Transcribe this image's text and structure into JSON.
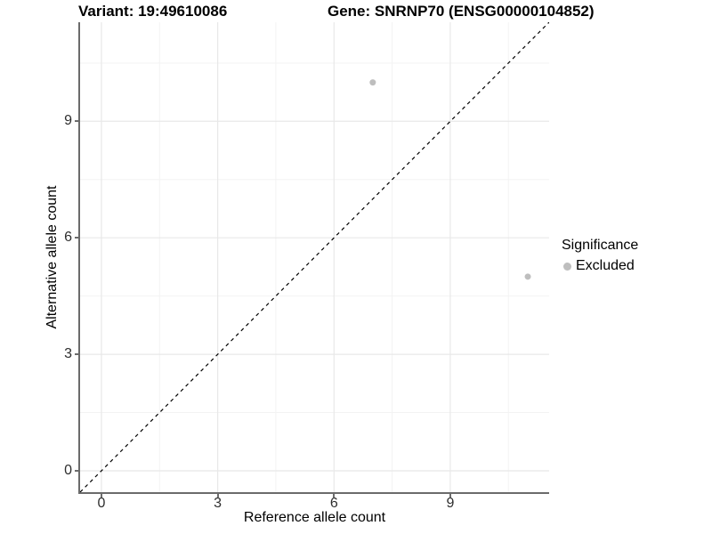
{
  "header": {
    "variant_title": "Variant: 19:49610086",
    "gene_title": "Gene: SNRNP70 (ENSG00000104852)"
  },
  "legend": {
    "title": "Significance",
    "items": [
      {
        "label": "Excluded",
        "color": "#bebebe"
      }
    ]
  },
  "colors": {
    "background": "#ffffff",
    "axis_line": "#6b6b6b",
    "tick_label": "#2e2e2e",
    "grid_major": "#e8e8e8",
    "grid_minor": "#f3f3f3",
    "point": "#bebebe",
    "reference_line": "#000000"
  },
  "chart_data": {
    "type": "scatter",
    "title_left": "Variant: 19:49610086",
    "title_right": "Gene: SNRNP70 (ENSG00000104852)",
    "xlabel": "Reference allele count",
    "ylabel": "Alternative allele count",
    "xlim": [
      -0.55,
      11.55
    ],
    "ylim": [
      -0.55,
      11.55
    ],
    "x_ticks": [
      0,
      3,
      6,
      9
    ],
    "y_ticks": [
      0,
      3,
      6,
      9
    ],
    "x_minor_gridlines": [
      1.5,
      4.5,
      7.5,
      10.5
    ],
    "y_minor_gridlines": [
      1.5,
      4.5,
      7.5,
      10.5
    ],
    "grid": "major+minor",
    "legend_position": "right",
    "series": [
      {
        "name": "Excluded",
        "color": "#bebebe",
        "marker": "circle",
        "points": [
          {
            "x": 7,
            "y": 10
          },
          {
            "x": 11,
            "y": 5
          }
        ]
      }
    ],
    "reference_line": {
      "equation": "y = x",
      "style": "dashed",
      "color": "#000000",
      "from": [
        -0.55,
        -0.55
      ],
      "to": [
        11.55,
        11.55
      ]
    }
  }
}
